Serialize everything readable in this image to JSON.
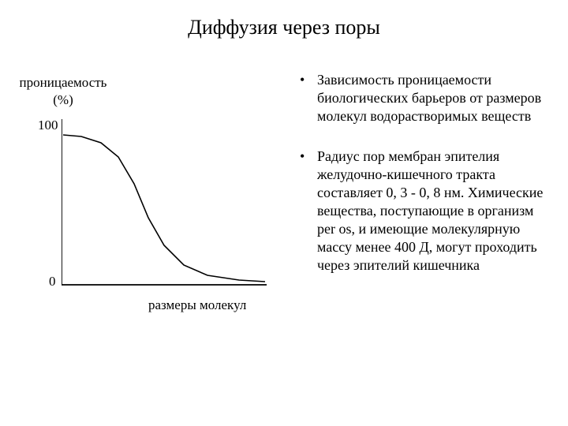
{
  "title": "Диффузия через поры",
  "chart": {
    "type": "line",
    "background_color": "#ffffff",
    "axis_color": "#000000",
    "axis_width": 1.8,
    "curve_color": "#000000",
    "curve_width": 1.6,
    "ylabel_line1": "проницаемость",
    "ylabel_line2": "(%)",
    "xlabel": "размеры молекул",
    "y_tick_top": "100",
    "y_tick_bottom": "0",
    "xlim": [
      0,
      260
    ],
    "ylim": [
      0,
      210
    ],
    "curve_points": [
      {
        "x": 2,
        "y": 20
      },
      {
        "x": 25,
        "y": 22
      },
      {
        "x": 50,
        "y": 30
      },
      {
        "x": 72,
        "y": 48
      },
      {
        "x": 92,
        "y": 82
      },
      {
        "x": 110,
        "y": 125
      },
      {
        "x": 130,
        "y": 160
      },
      {
        "x": 155,
        "y": 185
      },
      {
        "x": 185,
        "y": 198
      },
      {
        "x": 225,
        "y": 204
      },
      {
        "x": 258,
        "y": 206
      }
    ],
    "label_fontsize": 17,
    "tick_fontsize": 17
  },
  "bullets": {
    "mark": "•",
    "items": [
      "Зависимость проницаемости биологических барьеров от размеров молекул водорастворимых веществ",
      "Радиус пор мембран эпителия желудочно-кишечного тракта составляет 0, 3 - 0, 8 нм. Химические вещества, поступающие в организм per os, и имеющие молекулярную массу менее 400 Д, могут проходить через эпителий кишечника"
    ],
    "fontsize": 18
  }
}
